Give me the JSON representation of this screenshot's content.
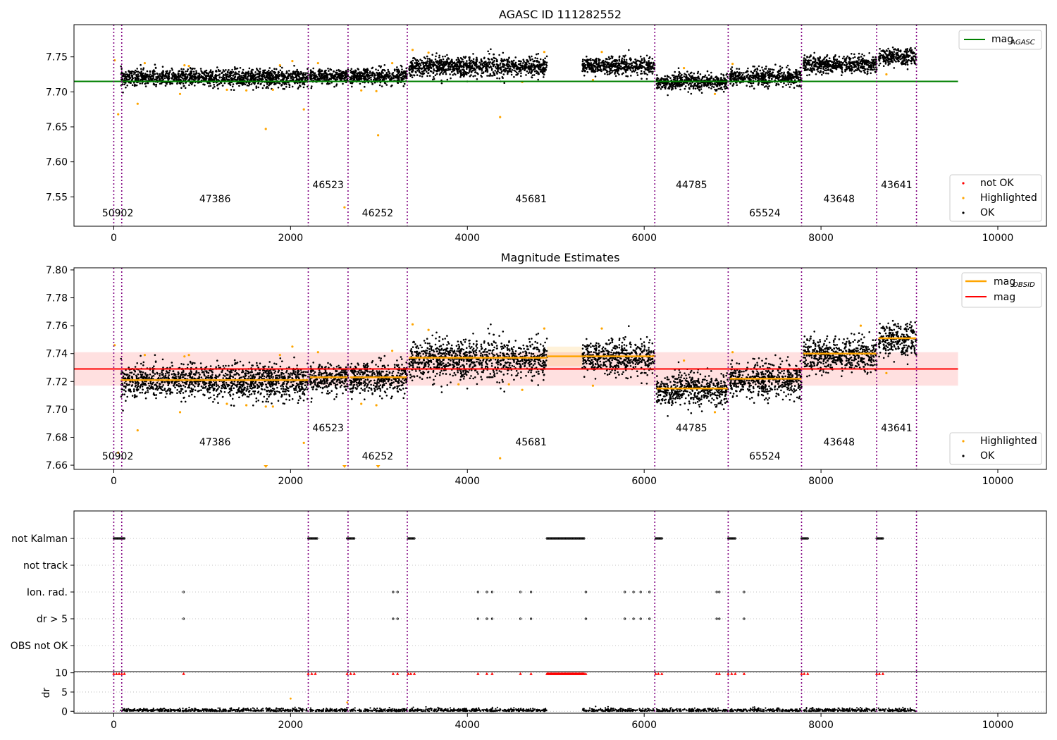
{
  "colors": {
    "ok": "#000000",
    "highlighted": "#ffa500",
    "not_ok": "#ff0000",
    "mag_agasc": "#008000",
    "mag_obsid": "#ffa500",
    "mag": "#ff0000",
    "obsid_boundary": "#800080",
    "grid": "#b0b0b0"
  },
  "chart_data": [
    {
      "id": "agasc",
      "type": "scatter",
      "title": "AGASC ID 111282552",
      "xlim": [
        -450,
        10550
      ],
      "ylim": [
        7.508,
        7.796
      ],
      "xticks": [
        0,
        2000,
        4000,
        6000,
        8000,
        10000
      ],
      "xtick_labels": [
        "0",
        "2000",
        "4000",
        "6000",
        "8000",
        "10000"
      ],
      "yticks": [
        7.55,
        7.6,
        7.65,
        7.7,
        7.75
      ],
      "ytick_labels": [
        "7.55",
        "7.60",
        "7.65",
        "7.70",
        "7.75"
      ],
      "mag_agasc": 7.715,
      "mag_agasc_xrange": [
        -450,
        9550
      ],
      "legend_top": {
        "label": "mag",
        "subscript": "AGASC",
        "placement": "upper right"
      },
      "legend_bottom": {
        "entries": [
          "not OK",
          "Highlighted",
          "OK"
        ],
        "placement": "lower right"
      },
      "highlighted_points": [
        [
          10,
          7.745
        ],
        [
          50,
          7.668
        ],
        [
          270,
          7.683
        ],
        [
          350,
          7.741
        ],
        [
          750,
          7.697
        ],
        [
          800,
          7.738
        ],
        [
          850,
          7.737
        ],
        [
          1280,
          7.703
        ],
        [
          1500,
          7.702
        ],
        [
          1720,
          7.647
        ],
        [
          1800,
          7.703
        ],
        [
          1880,
          7.738
        ],
        [
          2020,
          7.744
        ],
        [
          2150,
          7.675
        ],
        [
          2310,
          7.741
        ],
        [
          2610,
          7.535
        ],
        [
          2800,
          7.702
        ],
        [
          2970,
          7.701
        ],
        [
          2990,
          7.638
        ],
        [
          3150,
          7.741
        ],
        [
          3380,
          7.76
        ],
        [
          3560,
          7.756
        ],
        [
          4370,
          7.664
        ],
        [
          4620,
          7.714
        ],
        [
          4870,
          7.757
        ],
        [
          5420,
          7.717
        ],
        [
          5520,
          7.757
        ],
        [
          6450,
          7.734
        ],
        [
          6800,
          7.697
        ],
        [
          7000,
          7.74
        ],
        [
          8740,
          7.725
        ]
      ]
    },
    {
      "id": "mag_estimates",
      "type": "scatter",
      "title": "Magnitude Estimates",
      "xlim": [
        -450,
        10550
      ],
      "ylim": [
        7.657,
        7.8015
      ],
      "xticks": [
        0,
        2000,
        4000,
        6000,
        8000,
        10000
      ],
      "xtick_labels": [
        "0",
        "2000",
        "4000",
        "6000",
        "8000",
        "10000"
      ],
      "yticks": [
        7.66,
        7.68,
        7.7,
        7.72,
        7.74,
        7.76,
        7.78,
        7.8
      ],
      "ytick_labels": [
        "7.66",
        "7.68",
        "7.70",
        "7.72",
        "7.74",
        "7.76",
        "7.78",
        "7.80"
      ],
      "mag": 7.729,
      "mag_band": [
        7.717,
        7.741
      ],
      "mag_xrange": [
        -450,
        9550
      ],
      "legend_top": {
        "entries": [
          {
            "label": "mag",
            "subscript": "OBSID"
          },
          {
            "label": "mag",
            "subscript": ""
          }
        ],
        "placement": "upper right"
      },
      "legend_bottom": {
        "entries": [
          "Highlighted",
          "OK"
        ],
        "placement": "lower right"
      },
      "highlighted_points": [
        [
          10,
          7.746
        ],
        [
          50,
          7.669
        ],
        [
          270,
          7.685
        ],
        [
          350,
          7.739
        ],
        [
          750,
          7.698
        ],
        [
          800,
          7.738
        ],
        [
          850,
          7.739
        ],
        [
          1280,
          7.704
        ],
        [
          1500,
          7.703
        ],
        [
          1720,
          7.702
        ],
        [
          1800,
          7.702
        ],
        [
          1880,
          7.739
        ],
        [
          2020,
          7.745
        ],
        [
          2150,
          7.676
        ],
        [
          2310,
          7.741
        ],
        [
          2800,
          7.704
        ],
        [
          2970,
          7.703
        ],
        [
          3150,
          7.742
        ],
        [
          3380,
          7.761
        ],
        [
          3560,
          7.757
        ],
        [
          3900,
          7.718
        ],
        [
          4370,
          7.665
        ],
        [
          4470,
          7.718
        ],
        [
          4620,
          7.714
        ],
        [
          4870,
          7.758
        ],
        [
          5420,
          7.717
        ],
        [
          5520,
          7.758
        ],
        [
          6450,
          7.735
        ],
        [
          6800,
          7.698
        ],
        [
          7000,
          7.741
        ],
        [
          8450,
          7.76
        ],
        [
          8740,
          7.726
        ]
      ],
      "clipped_points_x": [
        1720,
        2610,
        2990
      ],
      "band_segments": [
        {
          "x": [
            4900,
            5300
          ],
          "y": 7.738,
          "band": [
            7.731,
            7.745
          ]
        }
      ]
    },
    {
      "id": "flags",
      "type": "scatter",
      "xlim": [
        -450,
        10550
      ],
      "xticks": [
        0,
        2000,
        4000,
        6000,
        8000,
        10000
      ],
      "xtick_labels": [
        "0",
        "2000",
        "4000",
        "6000",
        "8000",
        "10000"
      ],
      "rows": [
        "not Kalman",
        "not track",
        "Ion. rad.",
        "dr > 5",
        "OBS not OK"
      ],
      "grid": true,
      "not_kalman_ranges": [
        [
          0,
          120
        ],
        [
          2200,
          2300
        ],
        [
          2640,
          2720
        ],
        [
          3330,
          3400
        ],
        [
          4900,
          5320
        ],
        [
          6130,
          6200
        ],
        [
          6950,
          7030
        ],
        [
          7780,
          7850
        ],
        [
          8630,
          8700
        ]
      ],
      "ion_rad_x": [
        790,
        3160,
        3210,
        4120,
        4220,
        4280,
        4600,
        4720,
        5340,
        5780,
        5880,
        5960,
        6060,
        6820,
        6850,
        7130
      ],
      "dr_gt_5_x": [
        790,
        3160,
        3210,
        4120,
        4220,
        4280,
        4600,
        4720,
        5340,
        5780,
        5880,
        5960,
        6060,
        6820,
        6850,
        7130
      ]
    },
    {
      "id": "dr",
      "type": "scatter",
      "ylabel": "dr",
      "xlim": [
        -450,
        10550
      ],
      "ylim": [
        -0.5,
        10.3
      ],
      "xticks": [
        0,
        2000,
        4000,
        6000,
        8000,
        10000
      ],
      "xtick_labels": [
        "0",
        "2000",
        "4000",
        "6000",
        "8000",
        "10000"
      ],
      "yticks": [
        0,
        5,
        10
      ],
      "ytick_labels": [
        "0",
        "5",
        "10"
      ],
      "grid": true,
      "highlighted_points": [
        [
          2000,
          3.3
        ],
        [
          2640,
          2.3
        ]
      ],
      "not_ok_x": [
        0,
        30,
        60,
        90,
        120,
        790,
        2200,
        2240,
        2280,
        2640,
        2680,
        2720,
        3160,
        3210,
        3330,
        3360,
        3400,
        4120,
        4220,
        4280,
        4600,
        4720,
        5340,
        6130,
        6160,
        6200,
        6820,
        6850,
        6950,
        6990,
        7030,
        7130,
        7780,
        7810,
        7850,
        8630,
        8660,
        8700
      ]
    }
  ],
  "obsids": [
    {
      "label": "50902",
      "start": 0,
      "stop": 90,
      "row": 0
    },
    {
      "label": "47386",
      "start": 90,
      "stop": 2200,
      "row": 1
    },
    {
      "label": "46523",
      "start": 2200,
      "stop": 2650,
      "row": 2
    },
    {
      "label": "46252",
      "start": 2650,
      "stop": 3320,
      "row": 0
    },
    {
      "label": "45681",
      "start": 3320,
      "stop": 6120,
      "row": 1
    },
    {
      "label": "44785",
      "start": 6120,
      "stop": 6950,
      "row": 2
    },
    {
      "label": "65524",
      "start": 6950,
      "stop": 7780,
      "row": 0
    },
    {
      "label": "43648",
      "start": 7780,
      "stop": 8630,
      "row": 1
    },
    {
      "label": "43641",
      "start": 8630,
      "stop": 9080,
      "row": 2
    }
  ],
  "boundaries_x": [
    0,
    90,
    2200,
    2650,
    3320,
    6120,
    6950,
    7780,
    8630,
    9080
  ],
  "segments": [
    {
      "x": [
        80,
        2200
      ],
      "agasc_mean": 7.72,
      "obsid_mag": 7.721,
      "spread": 0.006
    },
    {
      "x": [
        2220,
        2650
      ],
      "agasc_mean": 7.722,
      "obsid_mag": 7.723,
      "spread": 0.005
    },
    {
      "x": [
        2670,
        3320
      ],
      "agasc_mean": 7.722,
      "obsid_mag": 7.723,
      "spread": 0.006
    },
    {
      "x": [
        3340,
        4900
      ],
      "agasc_mean": 7.736,
      "obsid_mag": 7.737,
      "spread": 0.007
    },
    {
      "x": [
        5300,
        6120
      ],
      "agasc_mean": 7.737,
      "obsid_mag": 7.738,
      "spread": 0.006
    },
    {
      "x": [
        6140,
        6950
      ],
      "agasc_mean": 7.714,
      "obsid_mag": 7.715,
      "spread": 0.006
    },
    {
      "x": [
        6970,
        7780
      ],
      "agasc_mean": 7.721,
      "obsid_mag": 7.722,
      "spread": 0.006
    },
    {
      "x": [
        7800,
        8630
      ],
      "agasc_mean": 7.739,
      "obsid_mag": 7.74,
      "spread": 0.006
    },
    {
      "x": [
        8650,
        9080
      ],
      "agasc_mean": 7.75,
      "obsid_mag": 7.751,
      "spread": 0.006
    }
  ]
}
